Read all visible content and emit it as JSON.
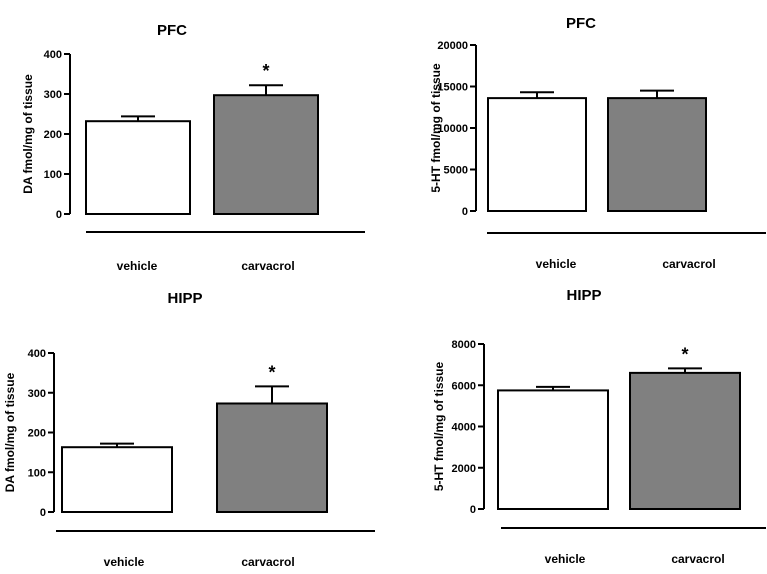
{
  "chart_data": [
    {
      "type": "bar",
      "title": "PFC",
      "ylabel": "DA fmol/mg of tissue",
      "xlabel": "",
      "categories": [
        "vehicle",
        "carvacrol"
      ],
      "values": [
        232,
        297
      ],
      "errors": [
        12,
        25
      ],
      "significance": [
        "",
        "*"
      ],
      "ylim": [
        0,
        400
      ],
      "yticks": [
        "0",
        "100",
        "200",
        "300",
        "400"
      ],
      "bar_colors": [
        "#ffffff",
        "#808080"
      ],
      "grid": false
    },
    {
      "type": "bar",
      "title": "PFC",
      "ylabel": "5-HT fmol/mg of tissue",
      "xlabel": "",
      "categories": [
        "vehicle",
        "carvacrol"
      ],
      "values": [
        13600,
        13600
      ],
      "errors": [
        700,
        900
      ],
      "significance": [
        "",
        ""
      ],
      "ylim": [
        0,
        20000
      ],
      "yticks": [
        "0",
        "5000",
        "10000",
        "15000",
        "20000"
      ],
      "bar_colors": [
        "#ffffff",
        "#808080"
      ],
      "grid": false
    },
    {
      "type": "bar",
      "title": "HIPP",
      "ylabel": "DA fmol/mg of tissue",
      "xlabel": "",
      "categories": [
        "vehicle",
        "carvacrol"
      ],
      "values": [
        163,
        273
      ],
      "errors": [
        9,
        43
      ],
      "significance": [
        "",
        "*"
      ],
      "ylim": [
        0,
        400
      ],
      "yticks": [
        "0",
        "100",
        "200",
        "300",
        "400"
      ],
      "bar_colors": [
        "#ffffff",
        "#808080"
      ],
      "grid": false
    },
    {
      "type": "bar",
      "title": "HIPP",
      "ylabel": "5-HT fmol/mg of tissue",
      "xlabel": "",
      "categories": [
        "vehicle",
        "carvacrol"
      ],
      "values": [
        5750,
        6600
      ],
      "errors": [
        170,
        220
      ],
      "significance": [
        "",
        "*"
      ],
      "ylim": [
        0,
        8000
      ],
      "yticks": [
        "0",
        "2000",
        "4000",
        "6000",
        "8000"
      ],
      "bar_colors": [
        "#ffffff",
        "#808080"
      ],
      "grid": false
    }
  ]
}
